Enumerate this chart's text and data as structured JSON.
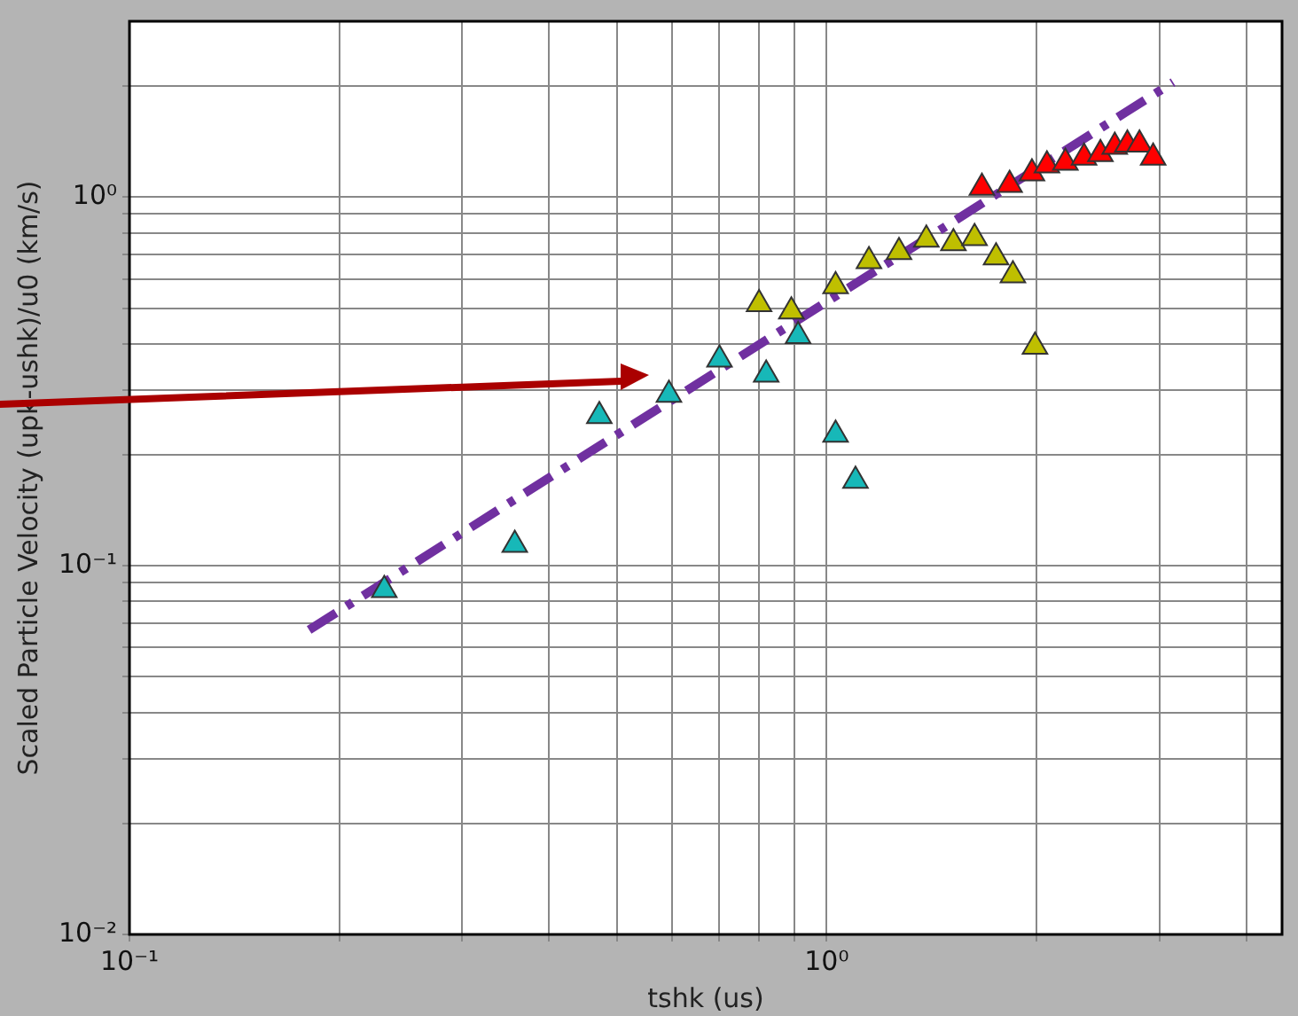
{
  "chart_data": {
    "type": "scatter",
    "xlabel": "tshk (us)",
    "ylabel": "Scaled Particle Velocity (upk-ushk)/u0 (km/s)",
    "log": "xy",
    "grid": true,
    "legend": false,
    "marker": "triangle",
    "xlim": [
      0.1,
      4.5
    ],
    "ylim": [
      0.01,
      3
    ],
    "xticks": [
      {
        "value": 0.1,
        "label": "10⁻¹"
      },
      {
        "value": 0.2,
        "label": null
      },
      {
        "value": 0.3,
        "label": null
      },
      {
        "value": 0.4,
        "label": null
      },
      {
        "value": 0.5,
        "label": null
      },
      {
        "value": 0.6,
        "label": null
      },
      {
        "value": 0.7,
        "label": null
      },
      {
        "value": 0.8,
        "label": null
      },
      {
        "value": 0.9,
        "label": null
      },
      {
        "value": 1,
        "label": "10⁰"
      },
      {
        "value": 2,
        "label": null
      },
      {
        "value": 3,
        "label": null
      },
      {
        "value": 4,
        "label": null
      }
    ],
    "yticks": [
      {
        "value": 0.01,
        "label": "10⁻²"
      },
      {
        "value": 0.02,
        "label": null
      },
      {
        "value": 0.03,
        "label": null
      },
      {
        "value": 0.04,
        "label": null
      },
      {
        "value": 0.05,
        "label": null
      },
      {
        "value": 0.06,
        "label": null
      },
      {
        "value": 0.07,
        "label": null
      },
      {
        "value": 0.08,
        "label": null
      },
      {
        "value": 0.09,
        "label": null
      },
      {
        "value": 0.1,
        "label": "10⁻¹"
      },
      {
        "value": 0.2,
        "label": null
      },
      {
        "value": 0.3,
        "label": null
      },
      {
        "value": 0.4,
        "label": null
      },
      {
        "value": 0.5,
        "label": null
      },
      {
        "value": 0.6,
        "label": null
      },
      {
        "value": 0.7,
        "label": null
      },
      {
        "value": 0.8,
        "label": null
      },
      {
        "value": 0.9,
        "label": null
      },
      {
        "value": 1,
        "label": "10⁰"
      },
      {
        "value": 2,
        "label": null
      }
    ],
    "series": [
      {
        "type": "line",
        "color": "#7030a0",
        "line_style": "dashed",
        "marker": "none",
        "x": [
          0.181,
          3.14
        ],
        "values": [
          0.067,
          2.05
        ]
      },
      {
        "color": "#17b8b8",
        "x": [
          0.232,
          0.357,
          0.472,
          0.594,
          0.702,
          0.819,
          0.91,
          1.03,
          1.1
        ],
        "values": [
          0.086,
          0.114,
          0.255,
          0.291,
          0.363,
          0.33,
          0.42,
          0.227,
          0.17
        ]
      },
      {
        "color": "#bfbf00",
        "x": [
          0.8,
          0.89,
          1.03,
          1.15,
          1.27,
          1.39,
          1.52,
          1.63,
          1.75,
          1.85,
          1.99
        ],
        "values": [
          0.513,
          0.49,
          0.574,
          0.671,
          0.71,
          0.767,
          0.75,
          0.775,
          0.687,
          0.614,
          0.393
        ]
      },
      {
        "color": "#ff0000",
        "x": [
          1.67,
          1.83,
          1.97,
          2.07,
          2.2,
          2.34,
          2.47,
          2.59,
          2.7,
          2.81,
          2.94
        ],
        "values": [
          1.06,
          1.08,
          1.16,
          1.22,
          1.24,
          1.28,
          1.31,
          1.37,
          1.39,
          1.39,
          1.28
        ]
      }
    ]
  }
}
